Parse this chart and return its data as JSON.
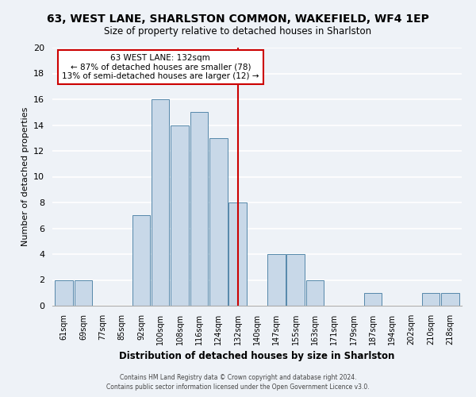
{
  "title": "63, WEST LANE, SHARLSTON COMMON, WAKEFIELD, WF4 1EP",
  "subtitle": "Size of property relative to detached houses in Sharlston",
  "xlabel": "Distribution of detached houses by size in Sharlston",
  "ylabel": "Number of detached properties",
  "bin_labels": [
    "61sqm",
    "69sqm",
    "77sqm",
    "85sqm",
    "92sqm",
    "100sqm",
    "108sqm",
    "116sqm",
    "124sqm",
    "132sqm",
    "140sqm",
    "147sqm",
    "155sqm",
    "163sqm",
    "171sqm",
    "179sqm",
    "187sqm",
    "194sqm",
    "202sqm",
    "210sqm",
    "218sqm"
  ],
  "bar_counts": [
    2,
    2,
    0,
    0,
    7,
    16,
    14,
    15,
    13,
    8,
    0,
    4,
    4,
    2,
    0,
    0,
    1,
    0,
    0,
    1,
    1
  ],
  "bar_color": "#c8d8e8",
  "bar_edge_color": "#5588aa",
  "vline_label": "132sqm",
  "annotation_title": "63 WEST LANE: 132sqm",
  "annotation_line1": "← 87% of detached houses are smaller (78)",
  "annotation_line2": "13% of semi-detached houses are larger (12) →",
  "annotation_box_color": "#ffffff",
  "annotation_box_edge": "#cc0000",
  "vline_color": "#cc0000",
  "ylim": [
    0,
    20
  ],
  "yticks": [
    0,
    2,
    4,
    6,
    8,
    10,
    12,
    14,
    16,
    18,
    20
  ],
  "footer1": "Contains HM Land Registry data © Crown copyright and database right 2024.",
  "footer2": "Contains public sector information licensed under the Open Government Licence v3.0.",
  "background_color": "#eef2f7",
  "grid_color": "#ffffff"
}
